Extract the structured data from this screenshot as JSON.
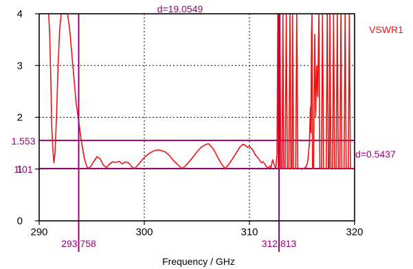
{
  "chart_data": {
    "type": "line",
    "xlabel": "Frequency / GHz",
    "xlim": [
      290,
      320
    ],
    "ylim": [
      0,
      4
    ],
    "grid": true,
    "x_ticks": [
      {
        "value": 290,
        "label": "290"
      },
      {
        "value": 300,
        "label": "300"
      },
      {
        "value": 310,
        "label": "310"
      },
      {
        "value": 320,
        "label": "320"
      }
    ],
    "y_ticks": [
      {
        "value": 0,
        "label": "0"
      },
      {
        "value": 1,
        "label": "1"
      },
      {
        "value": 2,
        "label": "2"
      },
      {
        "value": 3,
        "label": "3"
      },
      {
        "value": 4,
        "label": "4"
      }
    ],
    "legend_position": "top-right",
    "colors": {
      "curve": "#ee1111",
      "marker": "#990077",
      "frame": "#000000",
      "grid": "#000000"
    },
    "series": [
      {
        "name": "VSWR1",
        "points": [
          [
            290.9,
            4.0
          ],
          [
            291.0,
            3.6
          ],
          [
            291.1,
            2.8
          ],
          [
            291.2,
            1.8
          ],
          [
            291.3,
            1.4
          ],
          [
            291.4,
            1.12
          ],
          [
            291.5,
            1.3
          ],
          [
            291.65,
            2.0
          ],
          [
            291.8,
            3.0
          ],
          [
            291.95,
            3.7
          ],
          [
            292.1,
            4.0
          ],
          [
            292.7,
            4.0
          ],
          [
            292.9,
            3.7
          ],
          [
            293.2,
            3.0
          ],
          [
            293.5,
            2.3
          ],
          [
            293.758,
            1.93
          ],
          [
            294.0,
            1.55
          ],
          [
            294.3,
            1.2
          ],
          [
            294.6,
            1.01
          ],
          [
            294.9,
            1.05
          ],
          [
            295.2,
            1.15
          ],
          [
            295.5,
            1.24
          ],
          [
            295.8,
            1.2
          ],
          [
            296.1,
            1.08
          ],
          [
            296.4,
            1.03
          ],
          [
            296.7,
            1.1
          ],
          [
            297.0,
            1.14
          ],
          [
            297.3,
            1.13
          ],
          [
            297.6,
            1.15
          ],
          [
            297.9,
            1.1
          ],
          [
            298.2,
            1.14
          ],
          [
            298.5,
            1.12
          ],
          [
            298.8,
            1.05
          ],
          [
            299.1,
            1.01
          ],
          [
            299.4,
            1.08
          ],
          [
            299.8,
            1.18
          ],
          [
            300.2,
            1.26
          ],
          [
            300.6,
            1.32
          ],
          [
            301.0,
            1.36
          ],
          [
            301.4,
            1.37
          ],
          [
            301.7,
            1.35
          ],
          [
            302.0,
            1.33
          ],
          [
            302.4,
            1.26
          ],
          [
            302.8,
            1.16
          ],
          [
            303.2,
            1.08
          ],
          [
            303.6,
            1.01
          ],
          [
            304.0,
            1.08
          ],
          [
            304.5,
            1.2
          ],
          [
            305.0,
            1.33
          ],
          [
            305.4,
            1.42
          ],
          [
            305.8,
            1.47
          ],
          [
            306.1,
            1.49
          ],
          [
            306.3,
            1.45
          ],
          [
            306.6,
            1.38
          ],
          [
            307.0,
            1.22
          ],
          [
            307.4,
            1.08
          ],
          [
            307.7,
            1.01
          ],
          [
            308.0,
            1.08
          ],
          [
            308.4,
            1.2
          ],
          [
            308.8,
            1.33
          ],
          [
            309.1,
            1.43
          ],
          [
            309.4,
            1.48
          ],
          [
            309.6,
            1.46
          ],
          [
            309.8,
            1.42
          ],
          [
            310.0,
            1.44
          ],
          [
            310.2,
            1.4
          ],
          [
            310.4,
            1.34
          ],
          [
            310.6,
            1.26
          ],
          [
            310.8,
            1.22
          ],
          [
            311.0,
            1.16
          ],
          [
            311.15,
            1.12
          ],
          [
            311.3,
            1.14
          ],
          [
            311.45,
            1.1
          ],
          [
            311.6,
            1.05
          ],
          [
            311.8,
            1.02
          ],
          [
            311.95,
            1.06
          ],
          [
            312.05,
            1.03
          ],
          [
            312.2,
            1.18
          ],
          [
            312.35,
            1.08
          ],
          [
            312.5,
            1.01
          ],
          [
            312.62,
            1.3
          ],
          [
            312.7,
            4.0
          ],
          [
            312.75,
            1.01
          ],
          [
            312.85,
            1.01
          ],
          [
            312.9,
            4.0
          ],
          [
            312.98,
            1.01
          ],
          [
            313.1,
            1.01
          ],
          [
            313.18,
            4.0
          ],
          [
            313.26,
            1.01
          ],
          [
            313.4,
            1.01
          ],
          [
            313.5,
            4.0
          ],
          [
            313.6,
            1.01
          ],
          [
            313.75,
            1.01
          ],
          [
            313.85,
            4.0
          ],
          [
            313.95,
            1.01
          ],
          [
            314.05,
            1.01
          ],
          [
            314.1,
            4.0
          ],
          [
            314.2,
            1.01
          ],
          [
            314.4,
            1.01
          ],
          [
            314.5,
            4.0
          ],
          [
            314.6,
            1.02
          ],
          [
            314.8,
            1.01
          ],
          [
            315.0,
            1.0
          ],
          [
            315.2,
            1.01
          ],
          [
            315.4,
            1.05
          ],
          [
            315.55,
            1.15
          ],
          [
            315.7,
            1.5
          ],
          [
            315.8,
            2.2
          ],
          [
            315.85,
            1.7
          ],
          [
            315.9,
            3.6
          ],
          [
            315.95,
            4.0
          ],
          [
            316.0,
            1.01
          ],
          [
            316.1,
            1.01
          ],
          [
            316.2,
            3.6
          ],
          [
            316.3,
            2.0
          ],
          [
            316.4,
            3.0
          ],
          [
            316.5,
            2.4
          ],
          [
            316.6,
            4.0
          ],
          [
            316.7,
            1.01
          ],
          [
            316.85,
            1.01
          ],
          [
            316.95,
            4.0
          ],
          [
            317.05,
            1.01
          ],
          [
            317.3,
            1.01
          ],
          [
            317.4,
            4.0
          ],
          [
            317.5,
            1.01
          ],
          [
            317.6,
            1.01
          ],
          [
            317.65,
            4.0
          ],
          [
            317.75,
            1.01
          ],
          [
            317.9,
            1.01
          ],
          [
            318.0,
            4.0
          ],
          [
            318.1,
            1.01
          ],
          [
            318.25,
            1.01
          ],
          [
            318.35,
            4.0
          ],
          [
            318.45,
            1.01
          ],
          [
            318.6,
            1.01
          ],
          [
            318.7,
            4.0
          ],
          [
            318.8,
            1.01
          ],
          [
            319.0,
            1.01
          ],
          [
            319.1,
            4.0
          ],
          [
            319.2,
            1.01
          ],
          [
            319.4,
            1.01
          ],
          [
            319.5,
            4.0
          ],
          [
            319.6,
            1.01
          ],
          [
            320.0,
            1.01
          ]
        ]
      }
    ],
    "markers": {
      "vertical": [
        {
          "value": 293.758,
          "label": "293.758"
        },
        {
          "value": 312.813,
          "label": "312.813"
        }
      ],
      "horizontal": [
        {
          "value": 1.553,
          "label": "1.553"
        },
        {
          "value": 1.01,
          "label": "1.01"
        }
      ],
      "delta_x_label": "d=19.0549",
      "delta_y_label": "d=0.5437"
    }
  }
}
